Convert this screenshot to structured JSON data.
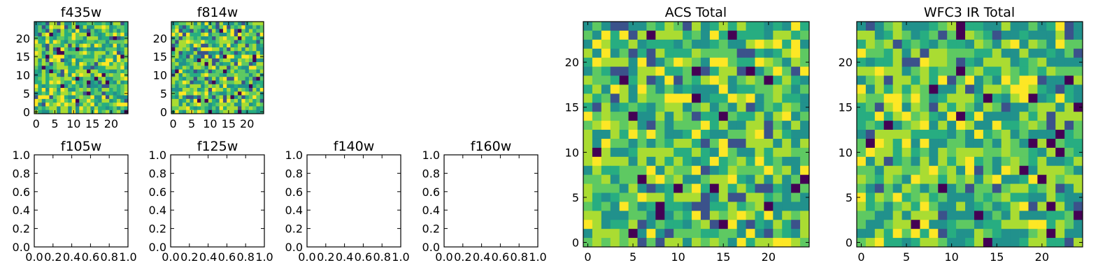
{
  "colors": {
    "palette": [
      "#440154",
      "#3b528b",
      "#21918c",
      "#27ad81",
      "#5ec962",
      "#aadc32",
      "#fde725"
    ],
    "axes": "#000000",
    "background": "#ffffff"
  },
  "chart_data": [
    {
      "type": "heatmap",
      "title": "f435w",
      "grid_size": 25,
      "seed": 11,
      "colormap": "viridis",
      "xticks": [
        "0",
        "5",
        "10",
        "15",
        "20"
      ],
      "yticks": [
        "0",
        "5",
        "10",
        "15",
        "20"
      ]
    },
    {
      "type": "heatmap",
      "title": "f814w",
      "grid_size": 25,
      "seed": 23,
      "colormap": "viridis",
      "xticks": [
        "0",
        "5",
        "10",
        "15",
        "20"
      ],
      "yticks": [
        "0",
        "5",
        "10",
        "15",
        "20"
      ]
    },
    {
      "type": "empty",
      "title": "f105w",
      "xticks": [
        "0.0",
        "0.2",
        "0.4",
        "0.6",
        "0.8",
        "1.0"
      ],
      "yticks": [
        "0.0",
        "0.2",
        "0.4",
        "0.6",
        "0.8",
        "1.0"
      ]
    },
    {
      "type": "empty",
      "title": "f125w",
      "xticks": [
        "0.0",
        "0.2",
        "0.4",
        "0.6",
        "0.8",
        "1.0"
      ],
      "yticks": [
        "0.0",
        "0.2",
        "0.4",
        "0.6",
        "0.8",
        "1.0"
      ]
    },
    {
      "type": "empty",
      "title": "f140w",
      "xticks": [
        "0.0",
        "0.2",
        "0.4",
        "0.6",
        "0.8",
        "1.0"
      ],
      "yticks": [
        "0.0",
        "0.2",
        "0.4",
        "0.6",
        "0.8",
        "1.0"
      ]
    },
    {
      "type": "empty",
      "title": "f160w",
      "xticks": [
        "0.0",
        "0.2",
        "0.4",
        "0.6",
        "0.8",
        "1.0"
      ],
      "yticks": [
        "0.0",
        "0.2",
        "0.4",
        "0.6",
        "0.8",
        "1.0"
      ]
    },
    {
      "type": "heatmap",
      "title": "ACS Total",
      "grid_size": 25,
      "seed": 37,
      "colormap": "viridis",
      "xticks": [
        "0",
        "5",
        "10",
        "15",
        "20"
      ],
      "yticks": [
        "0",
        "5",
        "10",
        "15",
        "20"
      ]
    },
    {
      "type": "heatmap",
      "title": "WFC3 IR Total",
      "grid_size": 25,
      "seed": 53,
      "colormap": "viridis",
      "xticks": [
        "0",
        "5",
        "10",
        "15",
        "20"
      ],
      "yticks": [
        "0",
        "5",
        "10",
        "15",
        "20"
      ]
    }
  ]
}
